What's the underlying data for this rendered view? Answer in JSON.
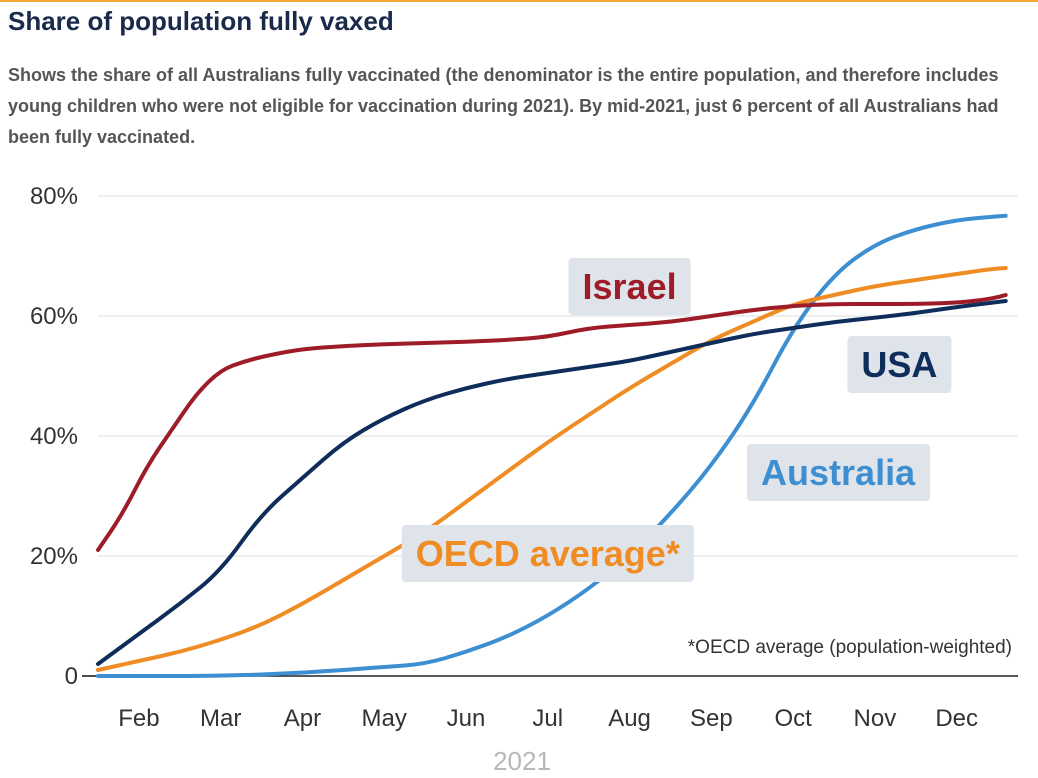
{
  "header": {
    "title": "Share of population fully vaxed",
    "subtitle": "Shows the share of all Australians fully vaccinated (the denominator is the entire population, and therefore includes young children who were not eligible for vaccination during 2021). By mid-2021, just 6 percent of all Australians had been fully vaccinated."
  },
  "chart_data": {
    "type": "line",
    "title": "Share of population fully vaxed",
    "xlabel": "2021",
    "ylabel": "",
    "x_unit": "month of 2021",
    "xlim": [
      1.5,
      12.75
    ],
    "ylim": [
      0,
      80
    ],
    "grid": true,
    "y_ticks": [
      {
        "value": 0,
        "label": "0"
      },
      {
        "value": 20,
        "label": "20%"
      },
      {
        "value": 40,
        "label": "40%"
      },
      {
        "value": 60,
        "label": "60%"
      },
      {
        "value": 80,
        "label": "80%"
      }
    ],
    "x_ticks": [
      {
        "value": 2,
        "label": "Feb"
      },
      {
        "value": 3,
        "label": "Mar"
      },
      {
        "value": 4,
        "label": "Apr"
      },
      {
        "value": 5,
        "label": "May"
      },
      {
        "value": 6,
        "label": "Jun"
      },
      {
        "value": 7,
        "label": "Jul"
      },
      {
        "value": 8,
        "label": "Aug"
      },
      {
        "value": 9,
        "label": "Sep"
      },
      {
        "value": 10,
        "label": "Oct"
      },
      {
        "value": 11,
        "label": "Nov"
      },
      {
        "value": 12,
        "label": "Dec"
      }
    ],
    "note": "*OECD average (population-weighted)",
    "series": [
      {
        "name": "Israel",
        "color": "#9e1b28",
        "x": [
          1.5,
          1.8,
          2.1,
          2.4,
          2.7,
          3.0,
          3.3,
          3.6,
          4.0,
          4.5,
          5.0,
          5.5,
          6.0,
          6.5,
          7.0,
          7.5,
          8.0,
          8.5,
          9.0,
          9.5,
          10.0,
          10.5,
          11.0,
          11.5,
          12.0,
          12.4,
          12.6
        ],
        "y": [
          21,
          27,
          35,
          41,
          47,
          51,
          52.5,
          53.5,
          54.5,
          55,
          55.3,
          55.5,
          55.7,
          56,
          56.5,
          58,
          58.5,
          59,
          60,
          61,
          61.7,
          62,
          62,
          62,
          62.2,
          62.8,
          63.5
        ]
      },
      {
        "name": "USA",
        "color": "#0f2d5a",
        "x": [
          1.5,
          2.0,
          2.5,
          3.0,
          3.5,
          4.0,
          4.5,
          5.0,
          5.5,
          6.0,
          6.5,
          7.0,
          7.5,
          8.0,
          8.5,
          9.0,
          9.5,
          10.0,
          10.5,
          11.0,
          11.5,
          12.0,
          12.6
        ],
        "y": [
          2,
          7,
          12,
          17.5,
          27,
          33,
          39,
          43,
          46,
          48,
          49.5,
          50.5,
          51.5,
          52.5,
          54,
          55.5,
          57,
          58,
          59,
          59.7,
          60.5,
          61.5,
          62.5
        ]
      },
      {
        "name": "Australia",
        "color": "#3d8fd1",
        "x": [
          1.5,
          3.0,
          4.0,
          5.0,
          5.5,
          6.0,
          6.5,
          7.0,
          7.5,
          8.0,
          8.5,
          9.0,
          9.5,
          10.0,
          10.5,
          11.0,
          11.5,
          12.0,
          12.4,
          12.6
        ],
        "y": [
          0,
          0,
          0.5,
          1.5,
          2,
          4,
          6.5,
          10,
          14.5,
          20,
          27,
          35,
          45,
          58,
          67,
          72,
          74.5,
          76,
          76.5,
          76.7
        ]
      },
      {
        "name": "OECD average*",
        "color": "#ef8c23",
        "x": [
          1.5,
          2.0,
          2.5,
          3.0,
          3.5,
          4.0,
          4.5,
          5.0,
          5.5,
          6.0,
          6.5,
          7.0,
          7.5,
          8.0,
          8.5,
          9.0,
          9.5,
          10.0,
          10.5,
          11.0,
          11.5,
          12.0,
          12.4,
          12.6
        ],
        "y": [
          1,
          2.5,
          4,
          6,
          8.5,
          12,
          16,
          20,
          24,
          29,
          34,
          39,
          43.5,
          48,
          52,
          56,
          59,
          62,
          63.5,
          65,
          66,
          67,
          67.8,
          68
        ]
      }
    ],
    "labels": [
      {
        "series": "Israel",
        "text": "Israel",
        "color": "#9e1b28",
        "at_month": 8.0,
        "at_value": 65
      },
      {
        "series": "USA",
        "text": "USA",
        "color": "#0f2d5a",
        "at_month": 11.3,
        "at_value": 52
      },
      {
        "series": "Australia",
        "text": "Australia",
        "color": "#3d8fd1",
        "at_month": 10.55,
        "at_value": 34
      },
      {
        "series": "OECD average*",
        "text": "OECD average*",
        "color": "#ef8c23",
        "at_month": 7.0,
        "at_value": 20.5
      }
    ]
  }
}
